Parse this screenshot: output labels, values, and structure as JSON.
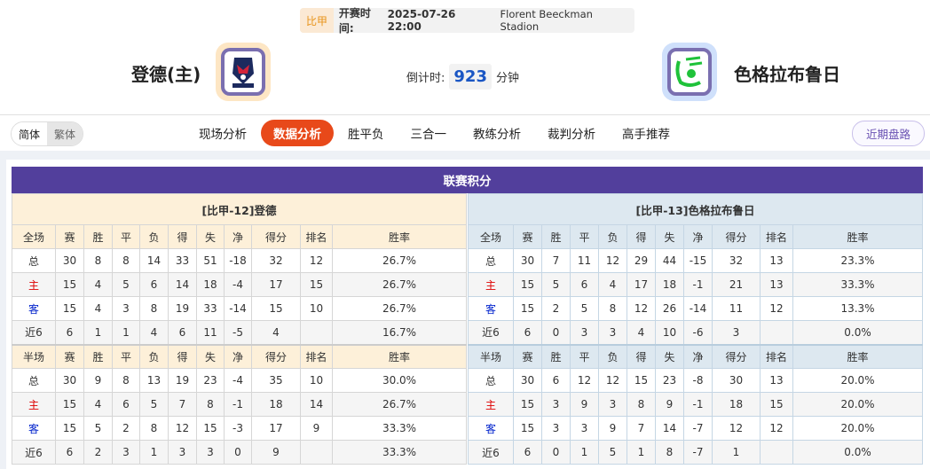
{
  "match": {
    "league": "比甲",
    "time_label": "开赛时间:",
    "time": "2025-07-26 22:00",
    "stadium": "Florent Beeckman Stadion"
  },
  "home": {
    "name": "登德(主)"
  },
  "away": {
    "name": "色格拉布鲁日"
  },
  "countdown": {
    "label": "倒计时:",
    "value": "923",
    "unit": "分钟"
  },
  "lang": {
    "simplified": "简体",
    "traditional": "繁体"
  },
  "tabs": [
    {
      "label": "现场分析"
    },
    {
      "label": "数据分析",
      "active": true
    },
    {
      "label": "胜平负"
    },
    {
      "label": "三合一"
    },
    {
      "label": "教练分析"
    },
    {
      "label": "裁判分析"
    },
    {
      "label": "高手推荐"
    }
  ],
  "recent_button": "近期盘路",
  "colors": {
    "accent": "#e8491a",
    "header": "#523f9c",
    "home_red": "#dd0000",
    "away_blue": "#0022cc"
  },
  "standings": {
    "title": "联赛积分",
    "columns": [
      "赛",
      "胜",
      "平",
      "负",
      "得",
      "失",
      "净",
      "得分",
      "排名",
      "胜率"
    ],
    "full_label": "全场",
    "half_label": "半场",
    "teams": [
      {
        "title": "[比甲-12]登德",
        "full": [
          [
            "总",
            "30",
            "8",
            "8",
            "14",
            "33",
            "51",
            "-18",
            "32",
            "12",
            "26.7%"
          ],
          [
            "主",
            "15",
            "4",
            "5",
            "6",
            "14",
            "18",
            "-4",
            "17",
            "15",
            "26.7%"
          ],
          [
            "客",
            "15",
            "4",
            "3",
            "8",
            "19",
            "33",
            "-14",
            "15",
            "10",
            "26.7%"
          ],
          [
            "近6",
            "6",
            "1",
            "1",
            "4",
            "6",
            "11",
            "-5",
            "4",
            "",
            "16.7%"
          ]
        ],
        "half": [
          [
            "总",
            "30",
            "9",
            "8",
            "13",
            "19",
            "23",
            "-4",
            "35",
            "10",
            "30.0%"
          ],
          [
            "主",
            "15",
            "4",
            "6",
            "5",
            "7",
            "8",
            "-1",
            "18",
            "14",
            "26.7%"
          ],
          [
            "客",
            "15",
            "5",
            "2",
            "8",
            "12",
            "15",
            "-3",
            "17",
            "9",
            "33.3%"
          ],
          [
            "近6",
            "6",
            "2",
            "3",
            "1",
            "3",
            "3",
            "0",
            "9",
            "",
            "33.3%"
          ]
        ]
      },
      {
        "title": "[比甲-13]色格拉布鲁日",
        "full": [
          [
            "总",
            "30",
            "7",
            "11",
            "12",
            "29",
            "44",
            "-15",
            "32",
            "13",
            "23.3%"
          ],
          [
            "主",
            "15",
            "5",
            "6",
            "4",
            "17",
            "18",
            "-1",
            "21",
            "13",
            "33.3%"
          ],
          [
            "客",
            "15",
            "2",
            "5",
            "8",
            "12",
            "26",
            "-14",
            "11",
            "12",
            "13.3%"
          ],
          [
            "近6",
            "6",
            "0",
            "3",
            "3",
            "4",
            "10",
            "-6",
            "3",
            "",
            "0.0%"
          ]
        ],
        "half": [
          [
            "总",
            "30",
            "6",
            "12",
            "12",
            "15",
            "23",
            "-8",
            "30",
            "13",
            "20.0%"
          ],
          [
            "主",
            "15",
            "3",
            "9",
            "3",
            "8",
            "9",
            "-1",
            "18",
            "15",
            "20.0%"
          ],
          [
            "客",
            "15",
            "3",
            "3",
            "9",
            "7",
            "14",
            "-7",
            "12",
            "12",
            "20.0%"
          ],
          [
            "近6",
            "6",
            "0",
            "1",
            "5",
            "1",
            "8",
            "-7",
            "1",
            "",
            "0.0%"
          ]
        ]
      }
    ]
  }
}
